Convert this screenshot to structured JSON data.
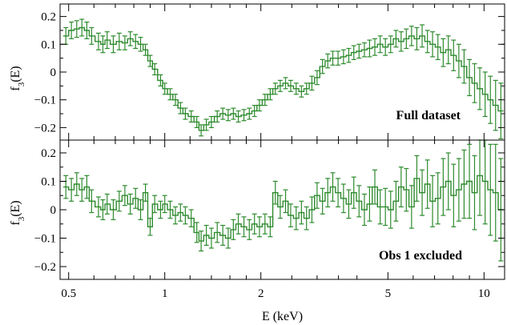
{
  "chart_data": [
    {
      "type": "line",
      "style": "step-with-errorbars",
      "ylabel": "f_3(E)",
      "xscale": "log",
      "xlim": [
        0.47,
        11.6
      ],
      "ylim": [
        -0.245,
        0.245
      ],
      "yticks": [
        -0.2,
        -0.1,
        0,
        0.1,
        0.2
      ],
      "ytick_labels": [
        "−0.2",
        "−0.1",
        "0",
        "0.1",
        "0.2"
      ],
      "annotation": "Full dataset",
      "annotation_position": "bottom-right",
      "series": [
        {
          "color": "#2e8b2e",
          "x": [
            0.49,
            0.51,
            0.53,
            0.55,
            0.57,
            0.59,
            0.62,
            0.64,
            0.66,
            0.69,
            0.72,
            0.75,
            0.78,
            0.81,
            0.84,
            0.87,
            0.9,
            0.93,
            0.97,
            1.0,
            1.04,
            1.08,
            1.12,
            1.16,
            1.21,
            1.26,
            1.3,
            1.35,
            1.4,
            1.46,
            1.52,
            1.58,
            1.64,
            1.7,
            1.77,
            1.84,
            1.91,
            1.98,
            2.06,
            2.14,
            2.22,
            2.3,
            2.39,
            2.48,
            2.58,
            2.68,
            2.78,
            2.89,
            3.0,
            3.12,
            3.24,
            3.36,
            3.49,
            3.63,
            3.77,
            3.91,
            4.06,
            4.22,
            4.38,
            4.55,
            4.73,
            4.91,
            5.1,
            5.3,
            5.5,
            5.71,
            5.93,
            6.16,
            6.4,
            6.65,
            6.9,
            7.17,
            7.45,
            7.73,
            8.03,
            8.34,
            8.66,
            9.0,
            9.34,
            9.7,
            10.08,
            10.47,
            10.87,
            11.29
          ],
          "y": [
            0.13,
            0.15,
            0.155,
            0.16,
            0.15,
            0.13,
            0.11,
            0.1,
            0.115,
            0.1,
            0.11,
            0.105,
            0.12,
            0.11,
            0.1,
            0.08,
            0.04,
            0.01,
            -0.03,
            -0.06,
            -0.08,
            -0.1,
            -0.13,
            -0.15,
            -0.16,
            -0.18,
            -0.21,
            -0.19,
            -0.18,
            -0.16,
            -0.15,
            -0.155,
            -0.15,
            -0.16,
            -0.155,
            -0.15,
            -0.14,
            -0.12,
            -0.1,
            -0.08,
            -0.06,
            -0.05,
            -0.04,
            -0.05,
            -0.06,
            -0.07,
            -0.06,
            -0.04,
            -0.02,
            0.02,
            0.04,
            0.05,
            0.05,
            0.055,
            0.06,
            0.07,
            0.075,
            0.08,
            0.085,
            0.09,
            0.1,
            0.09,
            0.1,
            0.12,
            0.11,
            0.12,
            0.13,
            0.12,
            0.13,
            0.11,
            0.1,
            0.09,
            0.07,
            0.08,
            0.06,
            0.04,
            0.02,
            -0.02,
            -0.04,
            -0.06,
            -0.08,
            -0.1,
            -0.12,
            -0.14
          ],
          "yerr": [
            0.03,
            0.03,
            0.03,
            0.03,
            0.03,
            0.03,
            0.03,
            0.03,
            0.03,
            0.03,
            0.03,
            0.025,
            0.025,
            0.025,
            0.025,
            0.02,
            0.02,
            0.02,
            0.02,
            0.02,
            0.02,
            0.02,
            0.02,
            0.02,
            0.02,
            0.02,
            0.02,
            0.02,
            0.02,
            0.02,
            0.02,
            0.02,
            0.02,
            0.02,
            0.02,
            0.02,
            0.02,
            0.02,
            0.02,
            0.02,
            0.02,
            0.02,
            0.02,
            0.02,
            0.02,
            0.02,
            0.02,
            0.025,
            0.025,
            0.025,
            0.025,
            0.025,
            0.025,
            0.025,
            0.025,
            0.025,
            0.025,
            0.025,
            0.03,
            0.03,
            0.03,
            0.03,
            0.03,
            0.03,
            0.035,
            0.035,
            0.035,
            0.04,
            0.04,
            0.04,
            0.045,
            0.045,
            0.05,
            0.05,
            0.055,
            0.06,
            0.06,
            0.065,
            0.07,
            0.075,
            0.08,
            0.085,
            0.09,
            0.1
          ]
        }
      ]
    },
    {
      "type": "line",
      "style": "step-with-errorbars",
      "xlabel": "E (keV)",
      "ylabel": "f_3(E)",
      "xscale": "log",
      "xlim": [
        0.47,
        11.6
      ],
      "ylim": [
        -0.245,
        0.245
      ],
      "xticks": [
        0.5,
        1,
        2,
        5,
        10
      ],
      "xtick_labels": [
        "0.5",
        "1",
        "2",
        "5",
        "10"
      ],
      "yticks": [
        -0.2,
        -0.1,
        0,
        0.1,
        0.2
      ],
      "ytick_labels": [
        "−0.2",
        "−0.1",
        "0",
        "0.1",
        "0.2"
      ],
      "annotation": "Obs 1 excluded",
      "annotation_position": "bottom-right",
      "series": [
        {
          "color": "#2e8b2e",
          "x": [
            0.49,
            0.51,
            0.53,
            0.55,
            0.57,
            0.59,
            0.62,
            0.64,
            0.66,
            0.69,
            0.72,
            0.75,
            0.78,
            0.81,
            0.84,
            0.87,
            0.9,
            0.93,
            0.97,
            1.0,
            1.04,
            1.08,
            1.12,
            1.16,
            1.21,
            1.26,
            1.3,
            1.35,
            1.4,
            1.46,
            1.52,
            1.58,
            1.64,
            1.7,
            1.77,
            1.84,
            1.91,
            1.98,
            2.06,
            2.14,
            2.22,
            2.3,
            2.39,
            2.48,
            2.58,
            2.68,
            2.78,
            2.89,
            3.0,
            3.12,
            3.24,
            3.36,
            3.49,
            3.63,
            3.77,
            3.91,
            4.06,
            4.22,
            4.38,
            4.55,
            4.73,
            4.91,
            5.1,
            5.3,
            5.5,
            5.71,
            5.93,
            6.16,
            6.4,
            6.65,
            6.9,
            7.17,
            7.45,
            7.73,
            8.03,
            8.34,
            8.66,
            9.0,
            9.34,
            9.7,
            10.08,
            10.47,
            10.87,
            11.29
          ],
          "y": [
            0.08,
            0.07,
            0.09,
            0.07,
            0.08,
            0.03,
            0.01,
            0.0,
            0.02,
            0.0,
            0.03,
            0.05,
            0.02,
            0.04,
            0.0,
            0.06,
            -0.06,
            0.02,
            0.0,
            0.02,
            0.0,
            -0.02,
            -0.01,
            -0.02,
            -0.03,
            -0.08,
            -0.11,
            -0.09,
            -0.1,
            -0.08,
            -0.09,
            -0.1,
            -0.07,
            -0.05,
            -0.06,
            -0.07,
            -0.05,
            -0.06,
            -0.05,
            -0.06,
            0.06,
            0.01,
            0.03,
            -0.02,
            -0.03,
            -0.01,
            -0.03,
            0.0,
            0.05,
            0.03,
            0.06,
            0.08,
            0.06,
            0.04,
            0.02,
            0.06,
            0.03,
            0.0,
            0.02,
            0.08,
            0.01,
            0.01,
            0.0,
            0.03,
            0.08,
            0.07,
            0.01,
            0.11,
            0.06,
            0.09,
            0.03,
            0.04,
            0.08,
            0.1,
            0.05,
            0.07,
            0.09,
            0.1,
            0.06,
            0.12,
            0.1,
            0.07,
            0.06,
            0.0
          ],
          "yerr": [
            0.04,
            0.04,
            0.04,
            0.04,
            0.04,
            0.04,
            0.035,
            0.035,
            0.035,
            0.035,
            0.035,
            0.035,
            0.035,
            0.035,
            0.035,
            0.03,
            0.03,
            0.03,
            0.03,
            0.03,
            0.03,
            0.03,
            0.03,
            0.03,
            0.03,
            0.035,
            0.035,
            0.035,
            0.035,
            0.035,
            0.035,
            0.035,
            0.035,
            0.035,
            0.035,
            0.035,
            0.035,
            0.035,
            0.035,
            0.035,
            0.04,
            0.04,
            0.04,
            0.04,
            0.04,
            0.04,
            0.04,
            0.045,
            0.045,
            0.045,
            0.05,
            0.05,
            0.05,
            0.05,
            0.05,
            0.055,
            0.055,
            0.055,
            0.06,
            0.06,
            0.06,
            0.065,
            0.065,
            0.07,
            0.07,
            0.075,
            0.075,
            0.08,
            0.08,
            0.085,
            0.09,
            0.09,
            0.1,
            0.1,
            0.11,
            0.11,
            0.12,
            0.13,
            0.13,
            0.14,
            0.15,
            0.16,
            0.17,
            0.18
          ]
        }
      ]
    }
  ]
}
